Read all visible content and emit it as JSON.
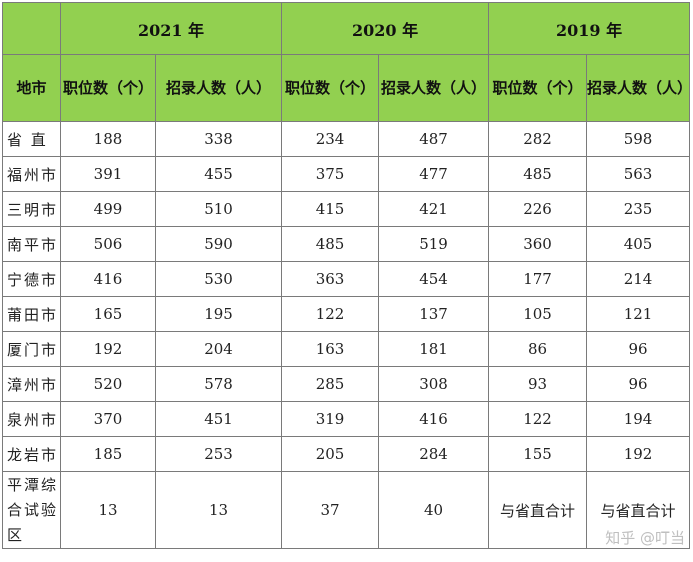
{
  "table": {
    "corner_label": "地市",
    "years": [
      "2021 年",
      "2020 年",
      "2019 年"
    ],
    "sub_headers": [
      "职位数（个）",
      "招录人数（人）",
      "职位数（个）",
      "招录人数（人）",
      "职位数（个）",
      "招录人数（人）"
    ],
    "rows": [
      {
        "region": "省 直",
        "values": [
          "188",
          "338",
          "234",
          "487",
          "282",
          "598"
        ]
      },
      {
        "region": "福州市",
        "values": [
          "391",
          "455",
          "375",
          "477",
          "485",
          "563"
        ]
      },
      {
        "region": "三明市",
        "values": [
          "499",
          "510",
          "415",
          "421",
          "226",
          "235"
        ]
      },
      {
        "region": "南平市",
        "values": [
          "506",
          "590",
          "485",
          "519",
          "360",
          "405"
        ]
      },
      {
        "region": "宁德市",
        "values": [
          "416",
          "530",
          "363",
          "454",
          "177",
          "214"
        ]
      },
      {
        "region": "莆田市",
        "values": [
          "165",
          "195",
          "122",
          "137",
          "105",
          "121"
        ]
      },
      {
        "region": "厦门市",
        "values": [
          "192",
          "204",
          "163",
          "181",
          "86",
          "96"
        ]
      },
      {
        "region": "漳州市",
        "values": [
          "520",
          "578",
          "285",
          "308",
          "93",
          "96"
        ]
      },
      {
        "region": "泉州市",
        "values": [
          "370",
          "451",
          "319",
          "416",
          "122",
          "194"
        ]
      },
      {
        "region": "龙岩市",
        "values": [
          "185",
          "253",
          "205",
          "284",
          "155",
          "192"
        ]
      },
      {
        "region": "平潭综合试验区",
        "values": [
          "13",
          "13",
          "37",
          "40",
          "与省直合计",
          "与省直合计"
        ]
      }
    ]
  },
  "watermark": "知乎 @叮当"
}
